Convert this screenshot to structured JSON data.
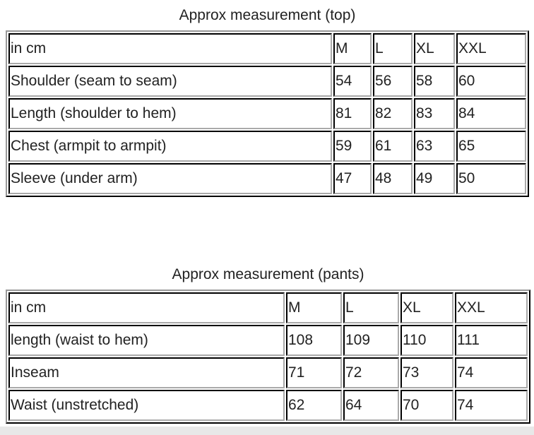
{
  "tables": [
    {
      "caption": "Approx measurement (top)",
      "header": [
        "in cm",
        "M",
        "L",
        "XL",
        "XXL"
      ],
      "rows": [
        [
          "Shoulder (seam to seam)",
          "54",
          "56",
          "58",
          "60"
        ],
        [
          "Length (shoulder to hem)",
          "81",
          "82",
          "83",
          "84"
        ],
        [
          "Chest (armpit to armpit)",
          "59",
          "61",
          "63",
          "65"
        ],
        [
          "Sleeve (under arm)",
          "47",
          "48",
          "49",
          "50"
        ]
      ]
    },
    {
      "caption": "Approx measurement (pants)",
      "header": [
        "in cm",
        "M",
        "L",
        "XL",
        "XXL"
      ],
      "rows": [
        [
          "length (waist to hem)",
          "108",
          "109",
          "110",
          "111"
        ],
        [
          "Inseam",
          "71",
          "72",
          "73",
          "74"
        ],
        [
          "Waist (unstretched)",
          "62",
          "64",
          "70",
          "74"
        ]
      ]
    }
  ]
}
